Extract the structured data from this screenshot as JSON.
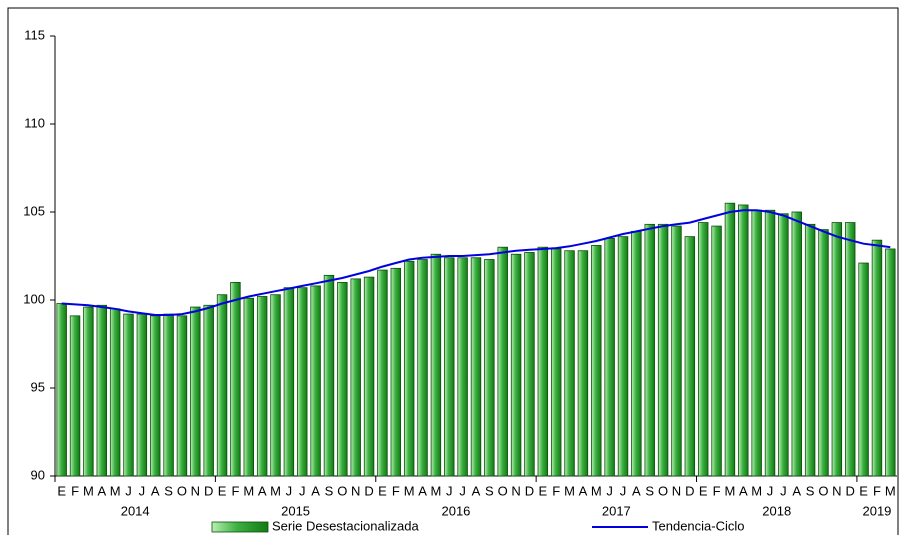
{
  "chart_data": {
    "type": "bar-line",
    "categories": [
      "E",
      "F",
      "M",
      "A",
      "M",
      "J",
      "J",
      "A",
      "S",
      "O",
      "N",
      "D",
      "E",
      "F",
      "M",
      "A",
      "M",
      "J",
      "J",
      "A",
      "S",
      "O",
      "N",
      "D",
      "E",
      "F",
      "M",
      "A",
      "M",
      "J",
      "J",
      "A",
      "S",
      "O",
      "N",
      "D",
      "E",
      "F",
      "M",
      "A",
      "M",
      "J",
      "J",
      "A",
      "S",
      "O",
      "N",
      "D",
      "E",
      "F",
      "M",
      "A",
      "M",
      "J",
      "J",
      "A",
      "S",
      "O",
      "N",
      "D",
      "E",
      "F",
      "M"
    ],
    "year_labels": [
      "2014",
      "2015",
      "2016",
      "2017",
      "2018",
      "2019"
    ],
    "series": [
      {
        "name": "Serie Desestacionalizada",
        "type": "bar",
        "color": "#3cb043",
        "values": [
          99.8,
          99.1,
          99.6,
          99.7,
          99.5,
          99.2,
          99.2,
          99.1,
          99.2,
          99.1,
          99.6,
          99.7,
          100.3,
          101.0,
          100.1,
          100.2,
          100.3,
          100.7,
          100.7,
          100.8,
          101.4,
          101.0,
          101.2,
          101.3,
          101.7,
          101.8,
          102.2,
          102.3,
          102.6,
          102.4,
          102.4,
          102.4,
          102.3,
          103.0,
          102.6,
          102.7,
          103.0,
          102.9,
          102.8,
          102.8,
          103.1,
          103.5,
          103.6,
          103.9,
          104.3,
          104.3,
          104.2,
          103.6,
          104.4,
          104.2,
          105.5,
          105.4,
          105.1,
          105.1,
          104.9,
          105.0,
          104.3,
          104.0,
          104.4,
          104.4,
          102.1,
          103.4,
          102.9
        ]
      },
      {
        "name": "Tendencia-Ciclo",
        "type": "line",
        "color": "#0000e0",
        "values": [
          99.8,
          99.75,
          99.7,
          99.6,
          99.5,
          99.35,
          99.25,
          99.15,
          99.15,
          99.2,
          99.35,
          99.55,
          99.8,
          100.0,
          100.2,
          100.35,
          100.5,
          100.65,
          100.8,
          100.95,
          101.1,
          101.25,
          101.45,
          101.65,
          101.9,
          102.1,
          102.3,
          102.4,
          102.45,
          102.5,
          102.5,
          102.55,
          102.6,
          102.7,
          102.8,
          102.85,
          102.9,
          102.95,
          103.05,
          103.2,
          103.35,
          103.55,
          103.75,
          103.9,
          104.05,
          104.2,
          104.3,
          104.4,
          104.6,
          104.8,
          105.0,
          105.1,
          105.1,
          105.0,
          104.8,
          104.5,
          104.2,
          103.9,
          103.6,
          103.4,
          103.2,
          103.1,
          103.0
        ]
      }
    ],
    "ylim": [
      90,
      115
    ],
    "yticks": [
      90,
      95,
      100,
      105,
      110,
      115
    ],
    "grid": false,
    "legend": "bottom"
  }
}
